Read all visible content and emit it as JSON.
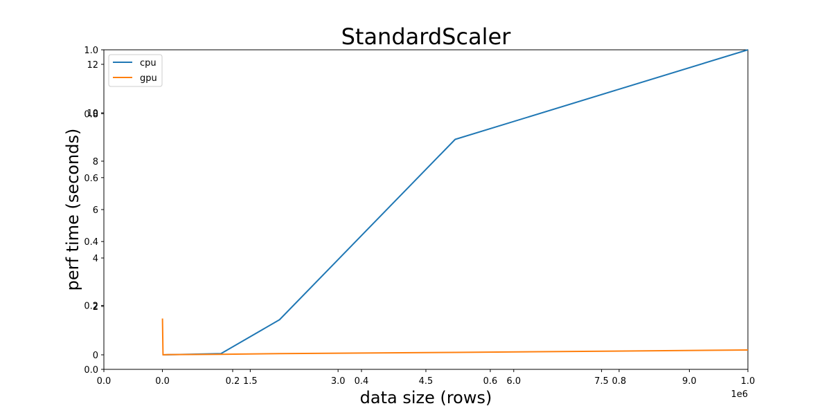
{
  "chart_data": {
    "type": "line",
    "title": "StandardScaler",
    "xlabel": "data size (rows)",
    "ylabel": "perf time (seconds)",
    "x_offset_label": "1e6",
    "xlim": [
      -1000000,
      10000000
    ],
    "ylim": [
      -0.6,
      12.6
    ],
    "xticks": [
      0.0,
      1.5,
      3.0,
      4.5,
      6.0,
      7.5,
      9.0
    ],
    "xtick_labels": [
      "0.0",
      "1.5",
      "3.0",
      "4.5",
      "6.0",
      "7.5",
      "9.0"
    ],
    "yticks": [
      0,
      2,
      4,
      6,
      8,
      10,
      12
    ],
    "yticks_overlay": [
      0.0,
      0.2,
      0.4,
      0.6,
      0.8,
      1.0
    ],
    "xticks_overlay": [
      0.0,
      0.2,
      0.4,
      0.6,
      0.8,
      1.0
    ],
    "legend_position": "upper-left",
    "series": [
      {
        "name": "cpu",
        "color": "#1f77b4",
        "x": [
          1000,
          1000000,
          2000000,
          5000000,
          10000000
        ],
        "y": [
          0.0,
          0.05,
          1.45,
          8.9,
          12.6
        ]
      },
      {
        "name": "gpu",
        "color": "#ff7f0e",
        "x": [
          1000,
          10000,
          100000,
          1000000,
          2000000,
          5000000,
          10000000
        ],
        "y": [
          1.5,
          0.0,
          0.01,
          0.02,
          0.05,
          0.1,
          0.2
        ]
      }
    ]
  }
}
